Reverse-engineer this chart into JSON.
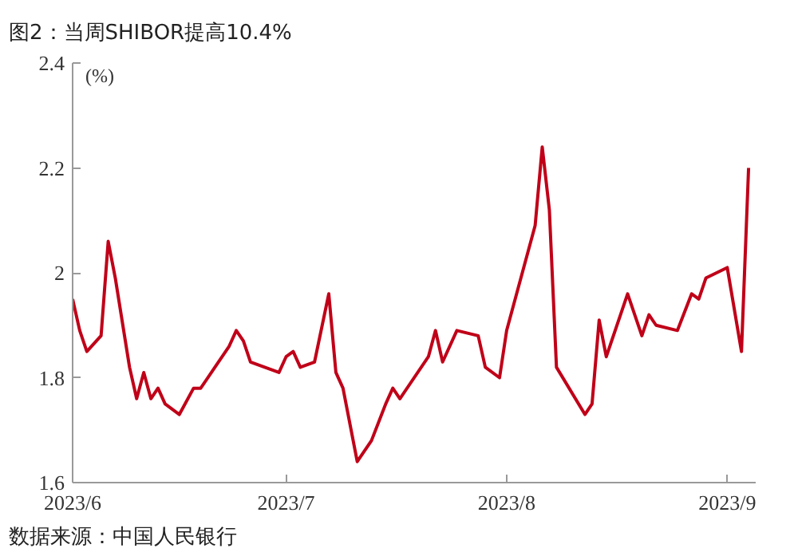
{
  "chart_data": {
    "type": "line",
    "title": "图2：当周SHIBOR提高10.4%",
    "ylabel": "(%)",
    "annotations": [
      "数据来源：中国人民银行"
    ],
    "x": [
      "2023-06-01",
      "2023-06-02",
      "2023-06-03",
      "2023-06-05",
      "2023-06-06",
      "2023-06-07",
      "2023-06-09",
      "2023-06-10",
      "2023-06-11",
      "2023-06-12",
      "2023-06-13",
      "2023-06-14",
      "2023-06-16",
      "2023-06-18",
      "2023-06-19",
      "2023-06-21",
      "2023-06-23",
      "2023-06-24",
      "2023-06-25",
      "2023-06-26",
      "2023-06-28",
      "2023-06-30",
      "2023-07-01",
      "2023-07-02",
      "2023-07-03",
      "2023-07-05",
      "2023-07-07",
      "2023-07-08",
      "2023-07-09",
      "2023-07-11",
      "2023-07-13",
      "2023-07-15",
      "2023-07-16",
      "2023-07-17",
      "2023-07-21",
      "2023-07-22",
      "2023-07-23",
      "2023-07-25",
      "2023-07-28",
      "2023-07-29",
      "2023-07-31",
      "2023-08-01",
      "2023-08-05",
      "2023-08-06",
      "2023-08-07",
      "2023-08-08",
      "2023-08-12",
      "2023-08-13",
      "2023-08-14",
      "2023-08-15",
      "2023-08-18",
      "2023-08-20",
      "2023-08-21",
      "2023-08-22",
      "2023-08-25",
      "2023-08-27",
      "2023-08-28",
      "2023-08-29",
      "2023-09-01",
      "2023-09-03",
      "2023-09-04"
    ],
    "series": [
      {
        "color": "#c00018",
        "values": [
          1.95,
          1.89,
          1.85,
          1.88,
          2.06,
          1.99,
          1.82,
          1.76,
          1.81,
          1.76,
          1.78,
          1.75,
          1.73,
          1.78,
          1.78,
          1.82,
          1.86,
          1.89,
          1.87,
          1.83,
          1.82,
          1.81,
          1.84,
          1.85,
          1.82,
          1.83,
          1.96,
          1.81,
          1.78,
          1.64,
          1.68,
          1.75,
          1.78,
          1.76,
          1.84,
          1.89,
          1.83,
          1.89,
          1.88,
          1.82,
          1.8,
          1.89,
          2.09,
          2.24,
          2.12,
          1.82,
          1.73,
          1.75,
          1.91,
          1.84,
          1.96,
          1.88,
          1.92,
          1.9,
          1.89,
          1.96,
          1.95,
          1.99,
          2.01,
          1.85,
          2.2
        ]
      }
    ],
    "xlim": [
      "2023-06-01",
      "2023-09-05"
    ],
    "xticks": [
      {
        "value": "2023-06-01",
        "label": "2023/6"
      },
      {
        "value": "2023-07-01",
        "label": "2023/7"
      },
      {
        "value": "2023-08-01",
        "label": "2023/8"
      },
      {
        "value": "2023-09-01",
        "label": "2023/9"
      }
    ],
    "ylim": [
      1.6,
      2.4
    ],
    "yticks": [
      1.6,
      1.8,
      2,
      2.2,
      2.4
    ],
    "grid": false,
    "line_style": "solid"
  }
}
